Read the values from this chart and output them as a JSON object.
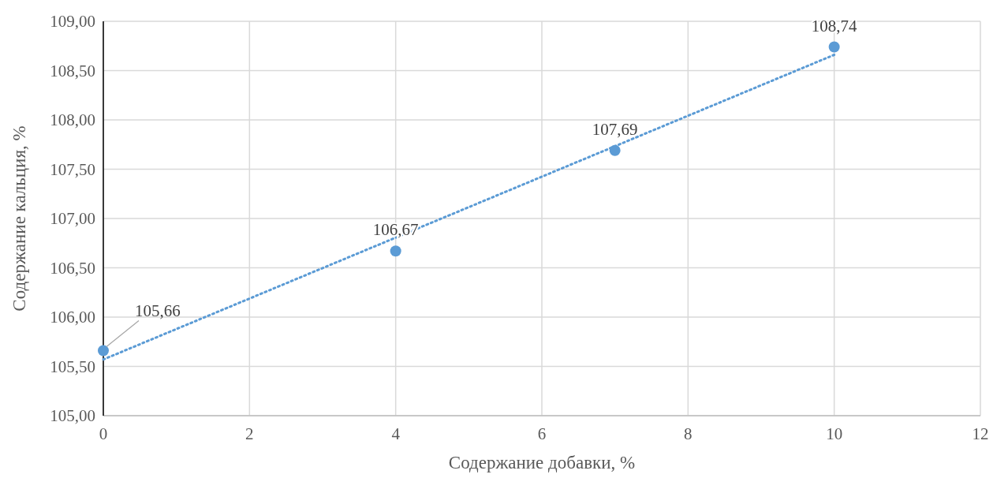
{
  "chart_data": {
    "type": "scatter",
    "xlabel": "Содержание добавки, %",
    "ylabel": "Содержание кальция, %",
    "xlim": [
      0,
      12
    ],
    "xticks": [
      0,
      2,
      4,
      6,
      8,
      10,
      12
    ],
    "ylim": [
      105,
      109
    ],
    "yticks": [
      {
        "value": 105,
        "label": "105,00"
      },
      {
        "value": 105.5,
        "label": "105,50"
      },
      {
        "value": 106,
        "label": "106,00"
      },
      {
        "value": 106.5,
        "label": "106,50"
      },
      {
        "value": 107,
        "label": "107,00"
      },
      {
        "value": 107.5,
        "label": "107,50"
      },
      {
        "value": 108,
        "label": "108,00"
      },
      {
        "value": 108.5,
        "label": "108,50"
      },
      {
        "value": 109,
        "label": "109,00"
      }
    ],
    "grid": true,
    "series": [
      {
        "color": "#5b9bd5",
        "marker": "circle",
        "x": [
          0,
          4,
          7,
          10
        ],
        "values": [
          105.66,
          106.67,
          107.69,
          108.74
        ],
        "value_labels": [
          "105,66",
          "106,67",
          "107,69",
          "108,74"
        ]
      },
      {
        "type": "line",
        "color": "#5b9bd5",
        "marker": "none",
        "line_style": "dotted",
        "x": [
          0,
          10
        ],
        "values": [
          105.57,
          108.66
        ]
      }
    ]
  }
}
